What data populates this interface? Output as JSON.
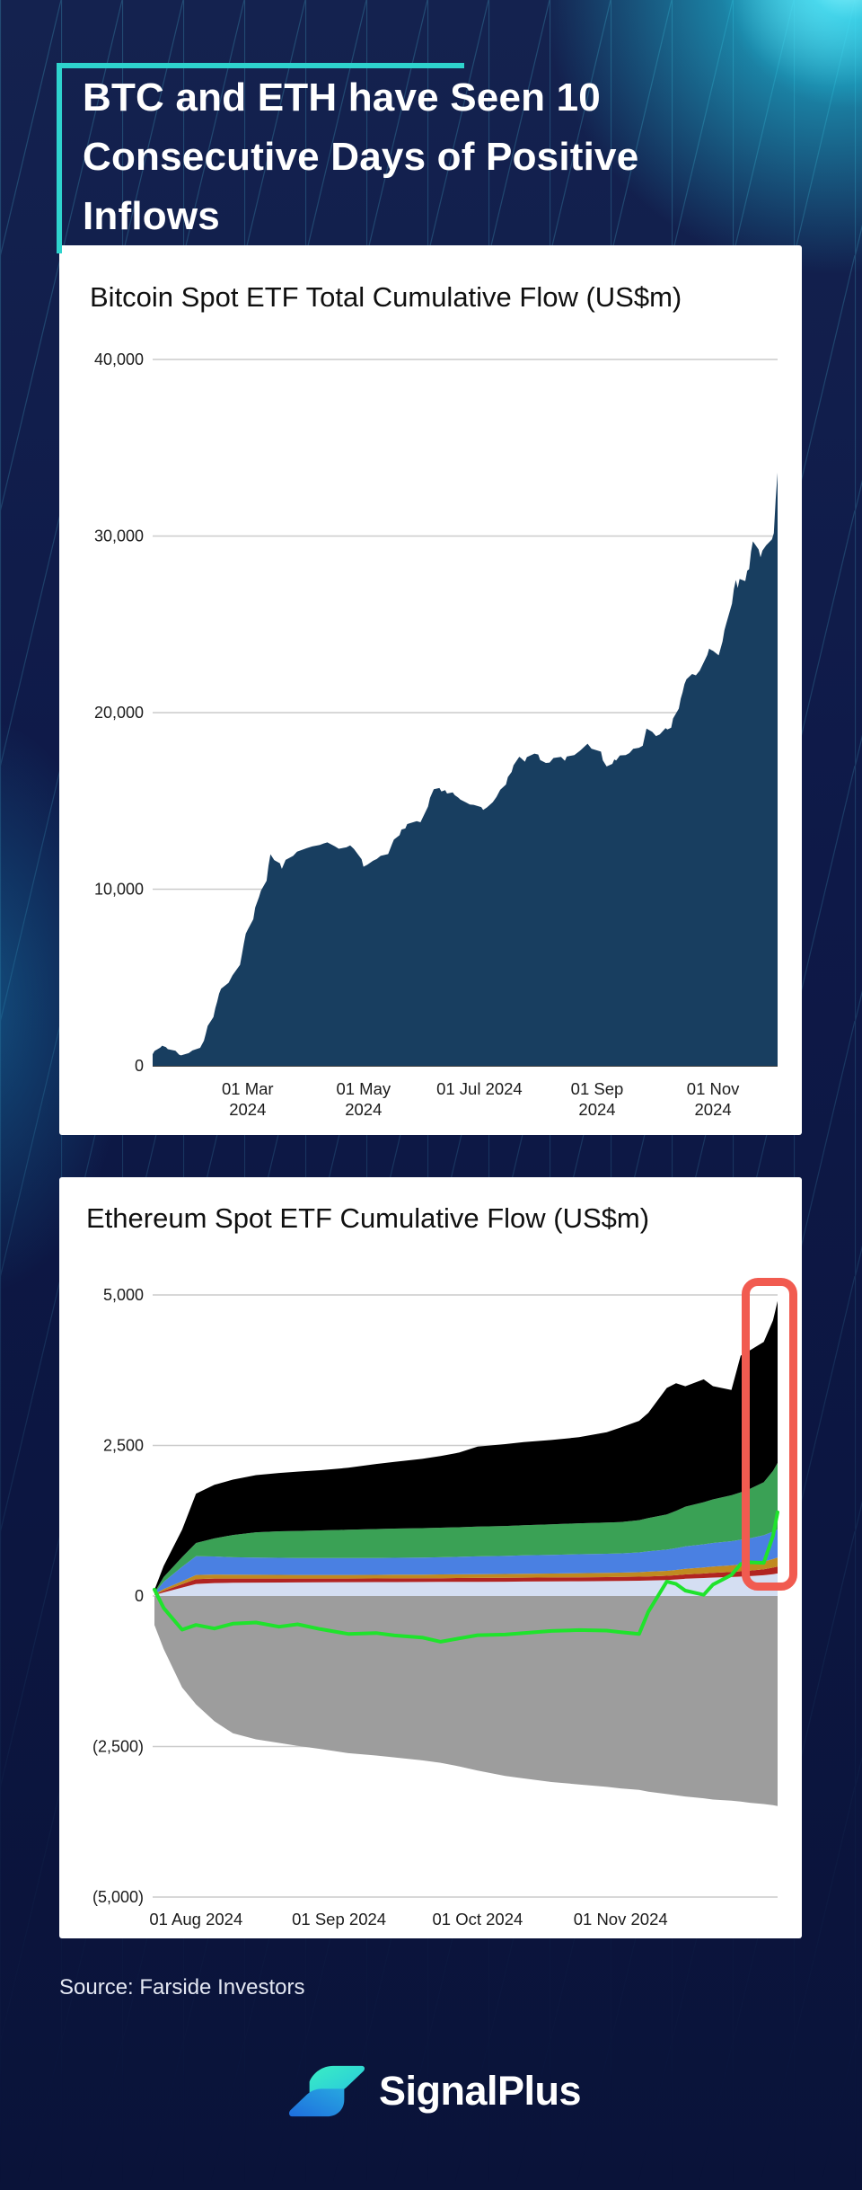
{
  "page": {
    "headline_line1": "BTC and ETH have Seen 10",
    "headline_line2": "Consecutive Days of Positive Inflows",
    "source": "Source: Farside Investors",
    "brand": "SignalPlus",
    "colors": {
      "background_top": "#14224f",
      "background_bottom": "#0a1339",
      "accent_teal": "#2ed3cd",
      "headline_text": "#ffffff",
      "card_background": "#ffffff",
      "pattern_line": "#27587f",
      "glow_cyan": "#22d9f2",
      "highlight_red": "#f15b50",
      "chart_text": "#1c1c1c",
      "grid_line": "#cccccc",
      "axis_line": "#3d3d3d",
      "source_text": "#e4e8f3"
    }
  },
  "chart_data": [
    {
      "type": "area",
      "title": "Bitcoin Spot ETF Total Cumulative Flow (US$m)",
      "series_name": "total-cumulative-flow",
      "fill_color": "#183e60",
      "xlabel": "",
      "ylabel": "",
      "ylim": [
        0,
        40000
      ],
      "grid": true,
      "legend_position": "none",
      "yticks": [
        {
          "value": 40000,
          "label": "40,000"
        },
        {
          "value": 30000,
          "label": "30,000"
        },
        {
          "value": 20000,
          "label": "20,000"
        },
        {
          "value": 10000,
          "label": "10,000"
        },
        {
          "value": 0,
          "label": "0"
        }
      ],
      "xticks": [
        {
          "date": "2024-03-01",
          "label": "01 Mar",
          "label2": "2024"
        },
        {
          "date": "2024-05-01",
          "label": "01 May",
          "label2": "2024"
        },
        {
          "date": "2024-07-01",
          "label": "01 Jul 2024"
        },
        {
          "date": "2024-09-01",
          "label": "01 Sep",
          "label2": "2024"
        },
        {
          "date": "2024-11-01",
          "label": "01 Nov",
          "label2": "2024"
        }
      ],
      "points": [
        [
          "2024-01-11",
          655
        ],
        [
          "2024-01-12",
          840
        ],
        [
          "2024-01-15",
          1030
        ],
        [
          "2024-01-16",
          1140
        ],
        [
          "2024-01-18",
          1060
        ],
        [
          "2024-01-19",
          940
        ],
        [
          "2024-01-23",
          850
        ],
        [
          "2024-01-25",
          620
        ],
        [
          "2024-01-26",
          590
        ],
        [
          "2024-01-30",
          720
        ],
        [
          "2024-02-01",
          870
        ],
        [
          "2024-02-05",
          1020
        ],
        [
          "2024-02-07",
          1420
        ],
        [
          "2024-02-08",
          1820
        ],
        [
          "2024-02-09",
          2260
        ],
        [
          "2024-02-12",
          2760
        ],
        [
          "2024-02-13",
          3260
        ],
        [
          "2024-02-14",
          3640
        ],
        [
          "2024-02-15",
          4080
        ],
        [
          "2024-02-16",
          4360
        ],
        [
          "2024-02-20",
          4700
        ],
        [
          "2024-02-22",
          5120
        ],
        [
          "2024-02-26",
          5720
        ],
        [
          "2024-02-27",
          6300
        ],
        [
          "2024-02-28",
          6900
        ],
        [
          "2024-02-29",
          7480
        ],
        [
          "2024-03-01",
          7700
        ],
        [
          "2024-03-04",
          8300
        ],
        [
          "2024-03-05",
          8960
        ],
        [
          "2024-03-07",
          9560
        ],
        [
          "2024-03-08",
          9920
        ],
        [
          "2024-03-11",
          10480
        ],
        [
          "2024-03-12",
          11330
        ],
        [
          "2024-03-13",
          11980
        ],
        [
          "2024-03-15",
          11650
        ],
        [
          "2024-03-18",
          11470
        ],
        [
          "2024-03-19",
          11150
        ],
        [
          "2024-03-21",
          11660
        ],
        [
          "2024-03-25",
          11890
        ],
        [
          "2024-03-27",
          12120
        ],
        [
          "2024-04-01",
          12320
        ],
        [
          "2024-04-04",
          12420
        ],
        [
          "2024-04-08",
          12510
        ],
        [
          "2024-04-10",
          12590
        ],
        [
          "2024-04-12",
          12650
        ],
        [
          "2024-04-16",
          12420
        ],
        [
          "2024-04-18",
          12290
        ],
        [
          "2024-04-22",
          12370
        ],
        [
          "2024-04-24",
          12480
        ],
        [
          "2024-04-26",
          12280
        ],
        [
          "2024-04-30",
          11700
        ],
        [
          "2024-05-01",
          11270
        ],
        [
          "2024-05-03",
          11390
        ],
        [
          "2024-05-06",
          11610
        ],
        [
          "2024-05-08",
          11710
        ],
        [
          "2024-05-10",
          11890
        ],
        [
          "2024-05-14",
          11990
        ],
        [
          "2024-05-16",
          12560
        ],
        [
          "2024-05-17",
          12810
        ],
        [
          "2024-05-20",
          13060
        ],
        [
          "2024-05-21",
          13380
        ],
        [
          "2024-05-23",
          13440
        ],
        [
          "2024-05-24",
          13690
        ],
        [
          "2024-05-29",
          13860
        ],
        [
          "2024-05-31",
          13790
        ],
        [
          "2024-06-04",
          14680
        ],
        [
          "2024-06-05",
          15170
        ],
        [
          "2024-06-07",
          15660
        ],
        [
          "2024-06-10",
          15730
        ],
        [
          "2024-06-11",
          15530
        ],
        [
          "2024-06-13",
          15610
        ],
        [
          "2024-06-14",
          15420
        ],
        [
          "2024-06-17",
          15480
        ],
        [
          "2024-06-18",
          15330
        ],
        [
          "2024-06-20",
          15180
        ],
        [
          "2024-06-21",
          15080
        ],
        [
          "2024-06-24",
          14910
        ],
        [
          "2024-06-26",
          14800
        ],
        [
          "2024-06-28",
          14780
        ],
        [
          "2024-07-02",
          14650
        ],
        [
          "2024-07-03",
          14490
        ],
        [
          "2024-07-05",
          14630
        ],
        [
          "2024-07-08",
          14920
        ],
        [
          "2024-07-10",
          15220
        ],
        [
          "2024-07-12",
          15630
        ],
        [
          "2024-07-15",
          15930
        ],
        [
          "2024-07-16",
          16350
        ],
        [
          "2024-07-18",
          16640
        ],
        [
          "2024-07-19",
          17020
        ],
        [
          "2024-07-22",
          17500
        ],
        [
          "2024-07-23",
          17420
        ],
        [
          "2024-07-25",
          17220
        ],
        [
          "2024-07-26",
          17480
        ],
        [
          "2024-07-30",
          17680
        ],
        [
          "2024-08-01",
          17630
        ],
        [
          "2024-08-02",
          17320
        ],
        [
          "2024-08-05",
          17150
        ],
        [
          "2024-08-07",
          17170
        ],
        [
          "2024-08-09",
          17430
        ],
        [
          "2024-08-13",
          17490
        ],
        [
          "2024-08-15",
          17270
        ],
        [
          "2024-08-16",
          17510
        ],
        [
          "2024-08-20",
          17600
        ],
        [
          "2024-08-23",
          17840
        ],
        [
          "2024-08-26",
          18140
        ],
        [
          "2024-08-27",
          18240
        ],
        [
          "2024-08-29",
          17960
        ],
        [
          "2024-09-03",
          17790
        ],
        [
          "2024-09-04",
          17300
        ],
        [
          "2024-09-06",
          16950
        ],
        [
          "2024-09-09",
          17100
        ],
        [
          "2024-09-10",
          17350
        ],
        [
          "2024-09-11",
          17290
        ],
        [
          "2024-09-13",
          17580
        ],
        [
          "2024-09-16",
          17600
        ],
        [
          "2024-09-18",
          17710
        ],
        [
          "2024-09-20",
          17950
        ],
        [
          "2024-09-23",
          18010
        ],
        [
          "2024-09-25",
          18120
        ],
        [
          "2024-09-26",
          18610
        ],
        [
          "2024-09-27",
          19100
        ],
        [
          "2024-09-30",
          18910
        ],
        [
          "2024-10-02",
          18670
        ],
        [
          "2024-10-04",
          18770
        ],
        [
          "2024-10-07",
          19120
        ],
        [
          "2024-10-08",
          19050
        ],
        [
          "2024-10-10",
          19150
        ],
        [
          "2024-10-11",
          19670
        ],
        [
          "2024-10-14",
          20230
        ],
        [
          "2024-10-15",
          20790
        ],
        [
          "2024-10-16",
          21150
        ],
        [
          "2024-10-17",
          21620
        ],
        [
          "2024-10-18",
          21890
        ],
        [
          "2024-10-21",
          22190
        ],
        [
          "2024-10-23",
          22110
        ],
        [
          "2024-10-25",
          22380
        ],
        [
          "2024-10-29",
          23260
        ],
        [
          "2024-10-30",
          23630
        ],
        [
          "2024-10-31",
          23550
        ],
        [
          "2024-11-01",
          23500
        ],
        [
          "2024-11-04",
          23240
        ],
        [
          "2024-11-06",
          24030
        ],
        [
          "2024-11-07",
          24670
        ],
        [
          "2024-11-08",
          25060
        ],
        [
          "2024-11-11",
          26170
        ],
        [
          "2024-11-12",
          26990
        ],
        [
          "2024-11-13",
          27510
        ],
        [
          "2024-11-14",
          27060
        ],
        [
          "2024-11-15",
          27570
        ],
        [
          "2024-11-18",
          27450
        ],
        [
          "2024-11-19",
          28040
        ],
        [
          "2024-11-20",
          28120
        ],
        [
          "2024-11-21",
          29110
        ],
        [
          "2024-11-22",
          29700
        ],
        [
          "2024-11-25",
          29240
        ],
        [
          "2024-11-26",
          28800
        ],
        [
          "2024-11-27",
          29170
        ],
        [
          "2024-11-29",
          29480
        ],
        [
          "2024-12-02",
          29810
        ],
        [
          "2024-12-03",
          30170
        ],
        [
          "2024-12-04",
          32100
        ],
        [
          "2024-12-05",
          33590
        ]
      ]
    },
    {
      "type": "stacked-area",
      "title": "Ethereum Spot ETF Cumulative Flow (US$m)",
      "xlabel": "",
      "ylabel": "",
      "ylim": [
        -5000,
        5000
      ],
      "grid": true,
      "legend_position": "none",
      "yticks": [
        {
          "value": 5000,
          "label": "5,000"
        },
        {
          "value": 2500,
          "label": "2,500"
        },
        {
          "value": 0,
          "label": "0"
        },
        {
          "value": -2500,
          "label": "(2,500)"
        },
        {
          "value": -5000,
          "label": "(5,000)"
        }
      ],
      "xticks": [
        {
          "date": "2024-08-01",
          "label": "01 Aug 2024"
        },
        {
          "date": "2024-09-01",
          "label": "01 Sep 2024"
        },
        {
          "date": "2024-10-01",
          "label": "01 Oct 2024"
        },
        {
          "date": "2024-11-01",
          "label": "01 Nov 2024"
        }
      ],
      "dates": [
        "2024-07-23",
        "2024-07-25",
        "2024-07-29",
        "2024-08-01",
        "2024-08-05",
        "2024-08-09",
        "2024-08-14",
        "2024-08-19",
        "2024-08-23",
        "2024-08-28",
        "2024-09-03",
        "2024-09-09",
        "2024-09-13",
        "2024-09-19",
        "2024-09-23",
        "2024-09-27",
        "2024-10-01",
        "2024-10-07",
        "2024-10-11",
        "2024-10-17",
        "2024-10-23",
        "2024-10-29",
        "2024-11-01",
        "2024-11-05",
        "2024-11-07",
        "2024-11-11",
        "2024-11-13",
        "2024-11-15",
        "2024-11-19",
        "2024-11-21",
        "2024-11-25",
        "2024-11-27",
        "2024-11-29",
        "2024-12-02",
        "2024-12-04",
        "2024-12-05"
      ],
      "stack_series": [
        {
          "name": "band-lavender",
          "color": "#d4def2",
          "values": [
            15,
            60,
            140,
            200,
            215,
            220,
            222,
            224,
            226,
            228,
            230,
            231,
            232,
            233,
            234,
            235,
            236,
            238,
            240,
            242,
            245,
            248,
            250,
            254,
            258,
            266,
            274,
            286,
            298,
            306,
            315,
            322,
            330,
            345,
            362,
            375
          ]
        },
        {
          "name": "band-dark-red",
          "color": "#b12421",
          "values": [
            5,
            25,
            55,
            80,
            75,
            70,
            68,
            66,
            64,
            62,
            60,
            60,
            60,
            61,
            62,
            63,
            64,
            64,
            65,
            65,
            66,
            66,
            66,
            67,
            68,
            70,
            71,
            72,
            75,
            78,
            84,
            88,
            92,
            100,
            110,
            115
          ]
        },
        {
          "name": "band-gold",
          "color": "#c08a20",
          "values": [
            10,
            30,
            50,
            70,
            66,
            63,
            62,
            61,
            60,
            60,
            60,
            60,
            61,
            61,
            62,
            62,
            62,
            63,
            64,
            66,
            68,
            70,
            72,
            75,
            78,
            82,
            88,
            94,
            100,
            104,
            110,
            114,
            118,
            128,
            142,
            150
          ]
        },
        {
          "name": "band-blue",
          "color": "#4a80e2",
          "values": [
            20,
            120,
            240,
            310,
            300,
            290,
            286,
            283,
            281,
            280,
            280,
            281,
            282,
            284,
            286,
            290,
            296,
            300,
            305,
            310,
            315,
            318,
            320,
            328,
            338,
            352,
            362,
            372,
            385,
            392,
            402,
            410,
            420,
            436,
            455,
            465
          ]
        },
        {
          "name": "band-green",
          "color": "#3aa155",
          "values": [
            10,
            80,
            160,
            220,
            300,
            370,
            420,
            440,
            450,
            460,
            470,
            480,
            484,
            488,
            490,
            492,
            494,
            498,
            502,
            508,
            514,
            518,
            520,
            535,
            552,
            585,
            620,
            660,
            700,
            725,
            762,
            788,
            820,
            880,
            1010,
            1105
          ]
        },
        {
          "name": "band-black",
          "color": "#000000",
          "values": [
            40,
            185,
            455,
            820,
            890,
            920,
            950,
            970,
            985,
            1000,
            1030,
            1080,
            1110,
            1150,
            1190,
            1240,
            1330,
            1360,
            1380,
            1400,
            1430,
            1500,
            1570,
            1650,
            1750,
            2100,
            2120,
            2000,
            2040,
            1880,
            1750,
            2270,
            2300,
            2330,
            2500,
            2690
          ]
        }
      ],
      "negative_series": {
        "name": "band-gray",
        "color": "#9d9d9d",
        "values": [
          -480,
          -880,
          -1520,
          -1800,
          -2080,
          -2280,
          -2380,
          -2440,
          -2490,
          -2540,
          -2610,
          -2650,
          -2680,
          -2730,
          -2770,
          -2830,
          -2900,
          -2990,
          -3030,
          -3090,
          -3130,
          -3170,
          -3195,
          -3220,
          -3250,
          -3290,
          -3310,
          -3330,
          -3360,
          -3380,
          -3400,
          -3415,
          -3435,
          -3455,
          -3475,
          -3490
        ]
      },
      "line_series": {
        "name": "total-net-flow-line",
        "color": "#1fe32c",
        "values": [
          107,
          -200,
          -560,
          -480,
          -540,
          -460,
          -440,
          -510,
          -470,
          -550,
          -630,
          -615,
          -655,
          -690,
          -760,
          -705,
          -650,
          -640,
          -615,
          -580,
          -565,
          -575,
          -600,
          -630,
          -260,
          240,
          200,
          90,
          20,
          190,
          350,
          530,
          560,
          550,
          1000,
          1390
        ]
      },
      "highlight_box_date_range": [
        "2024-11-26",
        "2024-12-05"
      ]
    }
  ]
}
